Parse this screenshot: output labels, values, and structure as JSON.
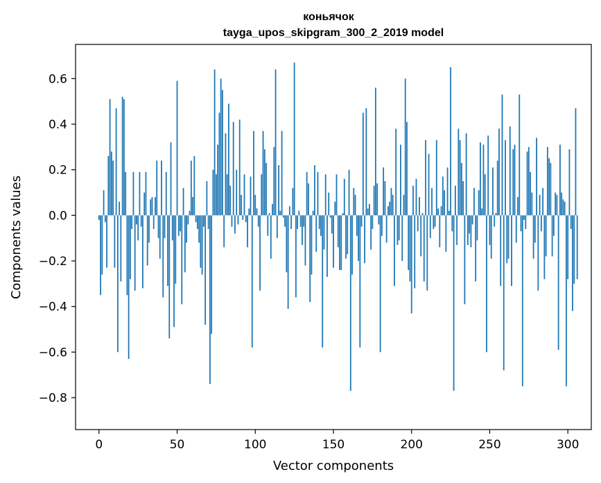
{
  "chart_data": {
    "type": "bar",
    "title": "коньячок",
    "subtitle": "tayga_upos_skipgram_300_2_2019 model",
    "xlabel": "Vector components",
    "ylabel": "Components values",
    "xlim": [
      -15,
      315
    ],
    "ylim": [
      -0.94,
      0.75
    ],
    "x_ticks": [
      0,
      50,
      100,
      150,
      200,
      250,
      300
    ],
    "x_tick_labels": [
      "0",
      "50",
      "100",
      "150",
      "200",
      "250",
      "300"
    ],
    "y_ticks": [
      -0.8,
      -0.6,
      -0.4,
      -0.2,
      0.0,
      0.2,
      0.4,
      0.6
    ],
    "y_tick_labels": [
      "−0.8",
      "−0.6",
      "−0.4",
      "−0.2",
      "0.0",
      "0.2",
      "0.4",
      "0.6"
    ],
    "grid": false,
    "bar_color": "#1f77b4",
    "series": [
      {
        "values": [
          -0.02,
          -0.35,
          -0.26,
          0.11,
          -0.03,
          -0.23,
          0.26,
          0.51,
          0.28,
          0.24,
          -0.23,
          0.47,
          -0.6,
          0.06,
          -0.29,
          0.52,
          0.51,
          0.19,
          -0.35,
          -0.63,
          -0.28,
          -0.06,
          0.19,
          -0.33,
          -0.04,
          -0.11,
          0.19,
          -0.05,
          -0.32,
          0.1,
          0.19,
          -0.22,
          -0.12,
          0.07,
          0.08,
          -0.06,
          0.08,
          0.24,
          -0.1,
          -0.19,
          0.24,
          -0.36,
          -0.1,
          0.19,
          -0.31,
          -0.54,
          0.32,
          -0.11,
          -0.49,
          -0.3,
          0.59,
          -0.09,
          -0.07,
          -0.39,
          0.12,
          -0.25,
          -0.12,
          -0.04,
          0.02,
          0.24,
          0.08,
          0.26,
          -0.03,
          -0.06,
          -0.12,
          -0.23,
          -0.26,
          -0.05,
          -0.48,
          0.15,
          -0.06,
          -0.74,
          -0.52,
          0.2,
          0.64,
          0.18,
          0.31,
          0.45,
          0.6,
          0.55,
          -0.14,
          0.36,
          0.18,
          0.49,
          0.13,
          -0.05,
          0.41,
          -0.08,
          0.2,
          -0.04,
          0.42,
          0.09,
          -0.02,
          0.18,
          -0.03,
          -0.14,
          0.03,
          0.17,
          -0.58,
          0.37,
          0.09,
          0.03,
          -0.05,
          -0.33,
          0.18,
          0.37,
          0.29,
          0.23,
          -0.09,
          0.01,
          -0.19,
          0.05,
          0.3,
          0.64,
          -0.1,
          0.22,
          0.02,
          0.37,
          -0.01,
          -0.05,
          -0.25,
          -0.41,
          0.04,
          -0.06,
          0.12,
          0.67,
          -0.36,
          -0.06,
          0.02,
          -0.05,
          -0.13,
          -0.05,
          -0.22,
          0.19,
          0.14,
          -0.38,
          -0.26,
          0.02,
          0.22,
          -0.16,
          0.19,
          -0.06,
          -0.09,
          -0.58,
          -0.15,
          0.18,
          -0.27,
          0.1,
          -0.01,
          -0.08,
          -0.23,
          0.06,
          0.18,
          -0.14,
          -0.24,
          -0.24,
          0.01,
          0.16,
          -0.19,
          -0.17,
          0.2,
          -0.77,
          -0.26,
          0.12,
          0.09,
          -0.09,
          -0.2,
          -0.58,
          -0.05,
          0.45,
          -0.21,
          0.47,
          0.03,
          0.05,
          -0.15,
          -0.06,
          0.13,
          0.56,
          0.14,
          -0.04,
          -0.6,
          -0.09,
          0.21,
          0.15,
          -0.12,
          0.04,
          0.06,
          0.12,
          0.09,
          -0.31,
          0.38,
          -0.13,
          -0.11,
          0.31,
          -0.2,
          0.09,
          0.6,
          0.41,
          -0.24,
          -0.29,
          -0.43,
          0.13,
          -0.32,
          0.16,
          -0.07,
          0.08,
          -0.18,
          0.01,
          -0.29,
          0.33,
          -0.33,
          0.27,
          -0.1,
          0.12,
          -0.06,
          -0.05,
          0.33,
          0.03,
          -0.14,
          0.04,
          0.17,
          0.11,
          -0.16,
          0.21,
          0.02,
          0.65,
          -0.07,
          -0.77,
          0.13,
          -0.13,
          0.38,
          0.33,
          0.23,
          0.15,
          -0.39,
          0.36,
          -0.13,
          -0.08,
          -0.14,
          -0.04,
          0.12,
          -0.29,
          -0.11,
          0.11,
          0.32,
          0.03,
          0.31,
          0.18,
          -0.6,
          0.35,
          -0.13,
          -0.19,
          0.21,
          -0.05,
          0.01,
          0.24,
          0.38,
          -0.31,
          0.53,
          -0.68,
          0.33,
          -0.21,
          -0.19,
          0.39,
          -0.31,
          0.29,
          0.31,
          -0.12,
          0.08,
          0.53,
          -0.07,
          -0.75,
          -0.02,
          -0.06,
          0.28,
          0.3,
          0.19,
          0.1,
          -0.19,
          -0.12,
          0.34,
          -0.33,
          0.09,
          -0.07,
          0.12,
          -0.28,
          -0.18,
          0.3,
          0.25,
          0.23,
          -0.18,
          -0.09,
          0.1,
          0.09,
          -0.59,
          0.31,
          0.1,
          0.07,
          0.06,
          -0.75,
          -0.28,
          0.29,
          -0.06,
          -0.42,
          -0.3,
          0.47,
          -0.28
        ]
      }
    ]
  }
}
